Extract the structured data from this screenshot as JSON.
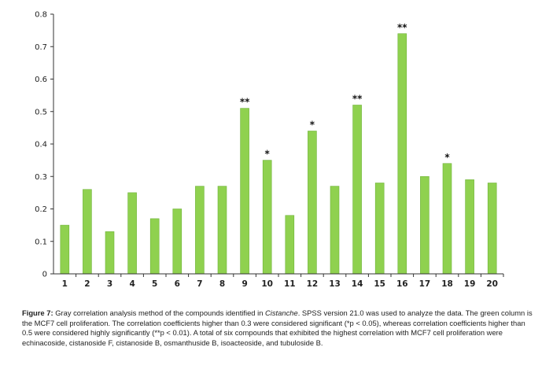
{
  "chart_data": {
    "type": "bar",
    "categories": [
      "1",
      "2",
      "3",
      "4",
      "5",
      "6",
      "7",
      "8",
      "9",
      "10",
      "11",
      "12",
      "13",
      "14",
      "15",
      "16",
      "17",
      "18",
      "19",
      "20"
    ],
    "values": [
      0.15,
      0.26,
      0.13,
      0.25,
      0.17,
      0.2,
      0.27,
      0.27,
      0.51,
      0.35,
      0.18,
      0.44,
      0.27,
      0.52,
      0.28,
      0.74,
      0.3,
      0.34,
      0.29,
      0.28
    ],
    "annotations": [
      "",
      "",
      "",
      "",
      "",
      "",
      "",
      "",
      "**",
      "*",
      "",
      "*",
      "",
      "**",
      "",
      "**",
      "",
      "*",
      "",
      ""
    ],
    "ylim": [
      0,
      0.8
    ],
    "yticks": [
      "0",
      "0.1",
      "0.2",
      "0.3",
      "0.4",
      "0.5",
      "0.6",
      "0.7",
      "0.8"
    ],
    "bar_color": "#8fd14f",
    "bar_edge_color": "#6fb23a",
    "grid": false,
    "title": "",
    "xlabel": "",
    "ylabel": ""
  },
  "caption": {
    "label": "Figure 7:",
    "text_before_italic": " Gray correlation analysis method of the compounds identified in ",
    "italic": "Cistanche",
    "text_after_italic": ". SPSS version 21.0 was used to analyze the data. The green column is the MCF7 cell proliferation. The correlation coefficients higher than 0.3 were considered significant (*p < 0.05), whereas correlation coefficients higher than 0.5 were considered highly significantly (**p < 0.01). A total of six compounds that exhibited the highest correlation with MCF7 cell proliferation were echinacoside, cistanoside F, cistanoside B, osmanthuside B, isoacteoside, and tubuloside B."
  }
}
